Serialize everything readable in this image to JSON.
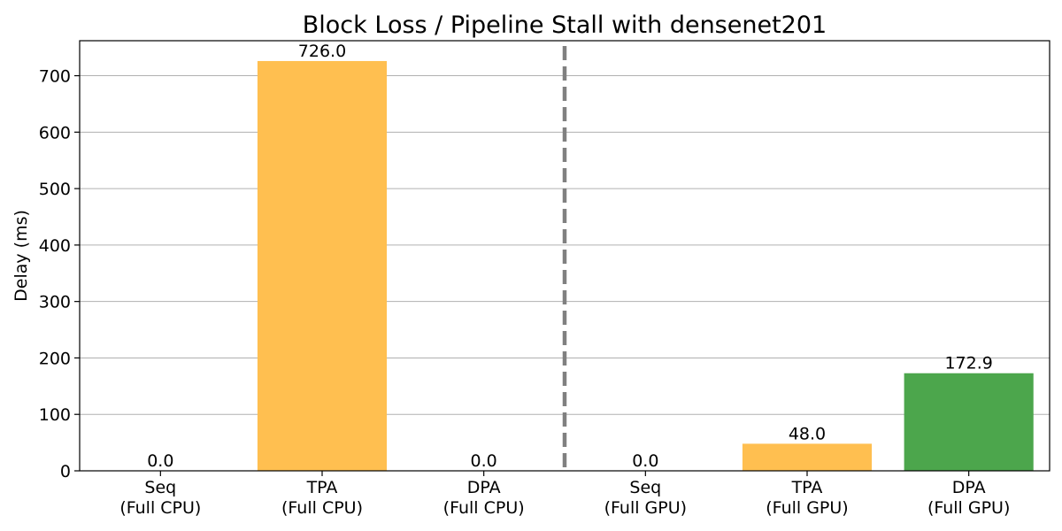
{
  "chart_data": {
    "type": "bar",
    "title": "Block Loss / Pipeline Stall with densenet201",
    "ylabel": "Delay (ms)",
    "xlabel": "",
    "ylim": [
      0,
      762
    ],
    "yticks": [
      0,
      100,
      200,
      300,
      400,
      500,
      600,
      700
    ],
    "grid": "horizontal",
    "categories": [
      [
        "Seq",
        "(Full CPU)"
      ],
      [
        "TPA",
        "(Full CPU)"
      ],
      [
        "DPA",
        "(Full CPU)"
      ],
      [
        "Seq",
        "(Full GPU)"
      ],
      [
        "TPA",
        "(Full GPU)"
      ],
      [
        "DPA",
        "(Full GPU)"
      ]
    ],
    "values": [
      0.0,
      726.0,
      0.0,
      0.0,
      48.0,
      172.9
    ],
    "value_labels": [
      "0.0",
      "726.0",
      "0.0",
      "0.0",
      "48.0",
      "172.9"
    ],
    "bar_colors": [
      "#FFBF50",
      "#FFBF50",
      "#FFBF50",
      "#FFBF50",
      "#FFBF50",
      "#4CA64C"
    ],
    "divider_after_category": 2,
    "divider_color": "#808080"
  }
}
